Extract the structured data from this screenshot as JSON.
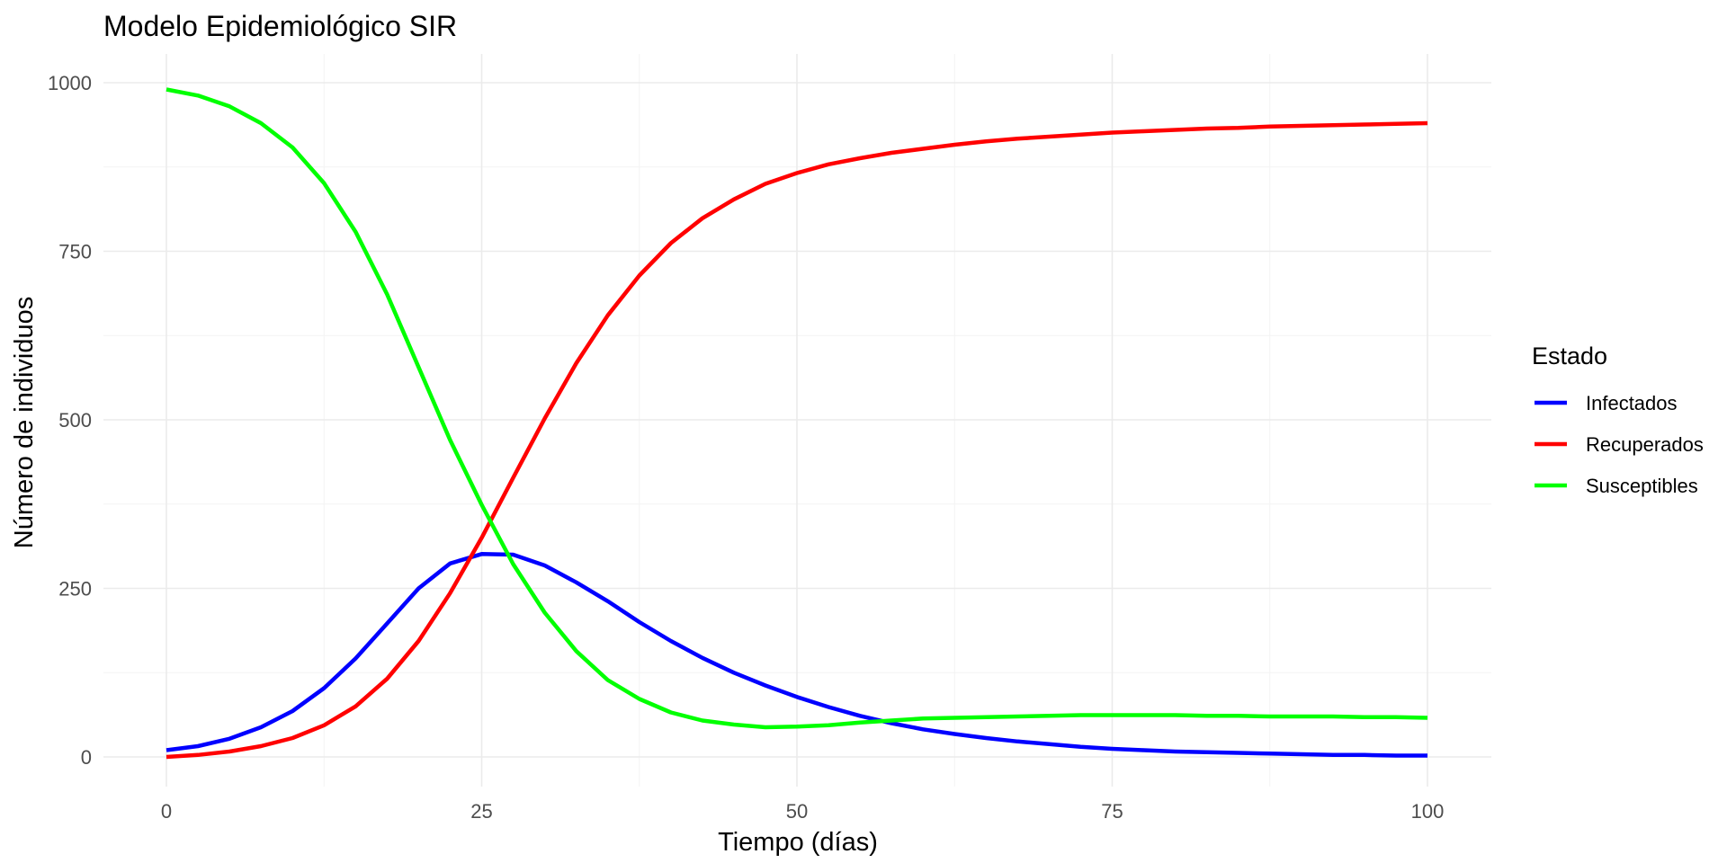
{
  "chart_data": {
    "type": "line",
    "title": "Modelo Epidemiológico SIR",
    "xlabel": "Tiempo (días)",
    "ylabel": "Número de individuos",
    "xlim": [
      0,
      100
    ],
    "ylim": [
      0,
      1000
    ],
    "x_ticks": [
      0,
      25,
      50,
      75,
      100
    ],
    "y_ticks": [
      0,
      250,
      500,
      750,
      1000
    ],
    "x_tick_labels": [
      "0",
      "25",
      "50",
      "75",
      "100"
    ],
    "y_tick_labels": [
      "0",
      "250",
      "500",
      "750",
      "1000"
    ],
    "grid": true,
    "legend": {
      "title": "Estado",
      "position": "right"
    },
    "x": [
      0,
      2.5,
      5,
      7.5,
      10,
      12.5,
      15,
      17.5,
      20,
      22.5,
      25,
      27.5,
      30,
      32.5,
      35,
      37.5,
      40,
      42.5,
      45,
      47.5,
      50,
      52.5,
      55,
      57.5,
      60,
      62.5,
      65,
      67.5,
      70,
      72.5,
      75,
      77.5,
      80,
      82.5,
      85,
      87.5,
      90,
      92.5,
      95,
      97.5,
      100
    ],
    "series": [
      {
        "name": "Infectados",
        "color": "#0000ff",
        "values": [
          10,
          16,
          27,
          44,
          68,
          102,
          146,
          198,
          250,
          287,
          301,
          300,
          284,
          259,
          231,
          200,
          172,
          147,
          125,
          106,
          89,
          74,
          61,
          50,
          41,
          34,
          28,
          23,
          19,
          15,
          12,
          10,
          8,
          7,
          6,
          5,
          4,
          3,
          3,
          2,
          2
        ]
      },
      {
        "name": "Recuperados",
        "color": "#ff0000",
        "values": [
          0,
          3,
          8,
          16,
          28,
          47,
          75,
          116,
          172,
          243,
          325,
          414,
          502,
          584,
          655,
          714,
          762,
          799,
          827,
          850,
          866,
          879,
          888,
          896,
          902,
          908,
          913,
          917,
          920,
          923,
          926,
          928,
          930,
          932,
          933,
          935,
          936,
          937,
          938,
          939,
          940
        ]
      },
      {
        "name": "Susceptibles",
        "color": "#00ff00",
        "values": [
          990,
          981,
          965,
          940,
          904,
          851,
          779,
          686,
          578,
          470,
          374,
          286,
          214,
          157,
          114,
          86,
          66,
          54,
          48,
          44,
          45,
          47,
          51,
          54,
          57,
          58,
          59,
          60,
          61,
          62,
          62,
          62,
          62,
          61,
          61,
          60,
          60,
          60,
          59,
          59,
          58
        ]
      }
    ]
  }
}
